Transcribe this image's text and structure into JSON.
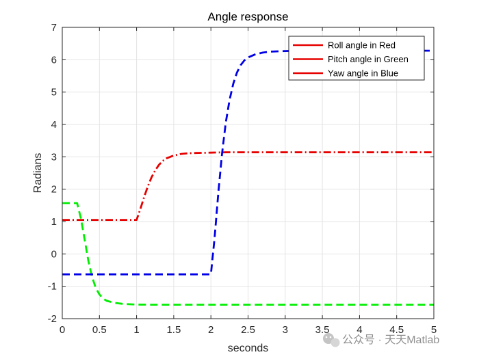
{
  "chart_data": {
    "type": "line",
    "title": "Angle response",
    "xlabel": "seconds",
    "ylabel": "Radians",
    "xlim": [
      0,
      5
    ],
    "ylim": [
      -2,
      7
    ],
    "xticks": [
      0,
      0.5,
      1,
      1.5,
      2,
      2.5,
      3,
      3.5,
      4,
      4.5,
      5
    ],
    "xtick_labels": [
      "0",
      "0.5",
      "1",
      "1.5",
      "2",
      "2.5",
      "3",
      "3.5",
      "4",
      "4.5",
      "5"
    ],
    "yticks": [
      -2,
      -1,
      0,
      1,
      2,
      3,
      4,
      5,
      6,
      7
    ],
    "ytick_labels": [
      "-2",
      "-1",
      "0",
      "1",
      "2",
      "3",
      "4",
      "5",
      "6",
      "7"
    ],
    "grid": true,
    "legend_position": "top-right",
    "series": [
      {
        "name": "Roll angle in Red",
        "legend_color": "#e60000",
        "color": "#e60000",
        "dash": "dash-dot",
        "x": [
          0,
          1.0,
          1.05,
          1.1,
          1.15,
          1.2,
          1.25,
          1.3,
          1.35,
          1.4,
          1.5,
          1.6,
          1.7,
          1.8,
          2.0,
          2.2,
          2.5,
          3.0,
          5.0
        ],
        "y": [
          1.05,
          1.05,
          1.38,
          1.75,
          2.08,
          2.36,
          2.58,
          2.75,
          2.87,
          2.95,
          3.04,
          3.09,
          3.11,
          3.12,
          3.13,
          3.14,
          3.14,
          3.14,
          3.14
        ]
      },
      {
        "name": "Pitch angle in Green",
        "legend_color": "#e60000",
        "color": "#00ee00",
        "dash": "dashed",
        "x": [
          0,
          0.2,
          0.25,
          0.3,
          0.35,
          0.4,
          0.45,
          0.5,
          0.55,
          0.6,
          0.7,
          0.8,
          0.9,
          1.0,
          1.2,
          1.5,
          2.0,
          5.0
        ],
        "y": [
          1.57,
          1.57,
          1.1,
          0.45,
          -0.2,
          -0.7,
          -1.05,
          -1.25,
          -1.38,
          -1.45,
          -1.51,
          -1.54,
          -1.555,
          -1.565,
          -1.57,
          -1.57,
          -1.57,
          -1.57
        ]
      },
      {
        "name": "Yaw angle in Blue",
        "legend_color": "#e60000",
        "color": "#0000e6",
        "dash": "dashed",
        "x": [
          0,
          2.0,
          2.05,
          2.1,
          2.15,
          2.2,
          2.25,
          2.3,
          2.35,
          2.4,
          2.45,
          2.5,
          2.6,
          2.7,
          2.8,
          3.0,
          3.2,
          3.5,
          4.0,
          5.0
        ],
        "y": [
          -0.63,
          -0.63,
          0.5,
          1.9,
          3.1,
          4.05,
          4.75,
          5.25,
          5.6,
          5.83,
          5.98,
          6.07,
          6.17,
          6.22,
          6.25,
          6.27,
          6.28,
          6.28,
          6.28,
          6.28
        ]
      }
    ]
  },
  "watermark": {
    "icon": "wechat-icon",
    "text": "公众号 · 天天Matlab"
  }
}
